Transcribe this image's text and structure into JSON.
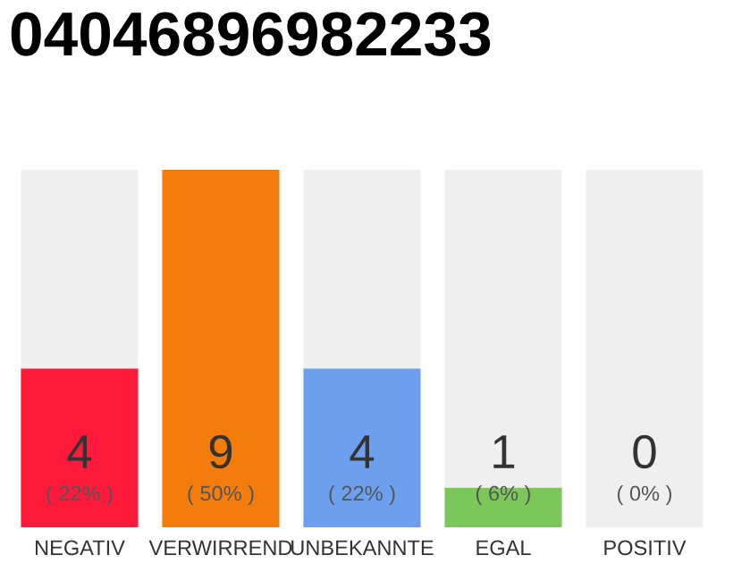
{
  "chart_data": {
    "type": "bar",
    "title": "04046896982233",
    "stacked": true,
    "categories": [
      "NEGATIV",
      "VERWIRREND",
      "UNBEKANNTE",
      "EGAL",
      "POSITIV"
    ],
    "series": [
      {
        "colors": [
          "#ff1a3c",
          "#f47c0c",
          "#6ca0ee",
          "#7cc75a",
          "#7cc75a"
        ],
        "values": [
          4,
          9,
          4,
          1,
          0
        ],
        "value_labels": [
          "4",
          "9",
          "4",
          "1",
          null
        ]
      },
      {
        "color": "#efefef",
        "values": [
          5,
          0,
          5,
          8,
          9
        ]
      }
    ],
    "annotations": [
      "( 22% )",
      "( 50% )",
      "( 22% )",
      "( 6% )",
      "( 0% )",
      "0"
    ],
    "grid": false,
    "legend": false
  }
}
